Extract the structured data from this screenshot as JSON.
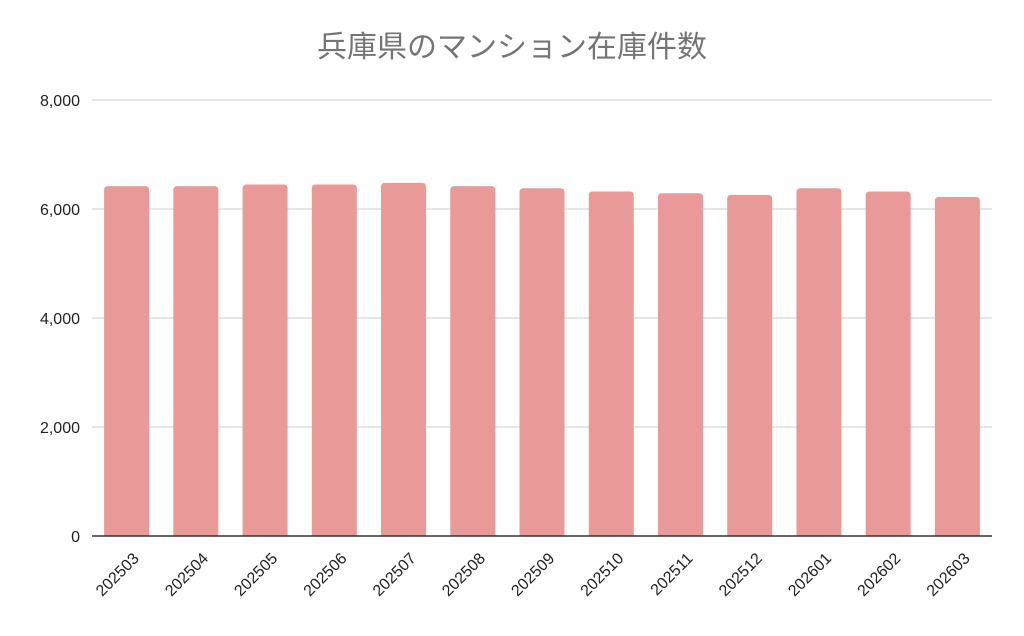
{
  "chart_data": {
    "type": "bar",
    "title": "兵庫県のマンション在庫件数",
    "xlabel": "",
    "ylabel": "",
    "categories": [
      "202503",
      "202504",
      "202505",
      "202506",
      "202507",
      "202508",
      "202509",
      "202510",
      "202511",
      "202512",
      "202601",
      "202602",
      "202603"
    ],
    "series": [
      {
        "values": [
          6420,
          6420,
          6450,
          6450,
          6480,
          6420,
          6380,
          6320,
          6290,
          6260,
          6380,
          6320,
          6220
        ],
        "color": "#ea9999"
      }
    ],
    "ylim": [
      0,
      8000
    ],
    "yticks": [
      0,
      2000,
      4000,
      6000,
      8000
    ],
    "ytick_labels": [
      "0",
      "2,000",
      "4,000",
      "6,000",
      "8,000"
    ],
    "grid": true,
    "legend": "none"
  }
}
